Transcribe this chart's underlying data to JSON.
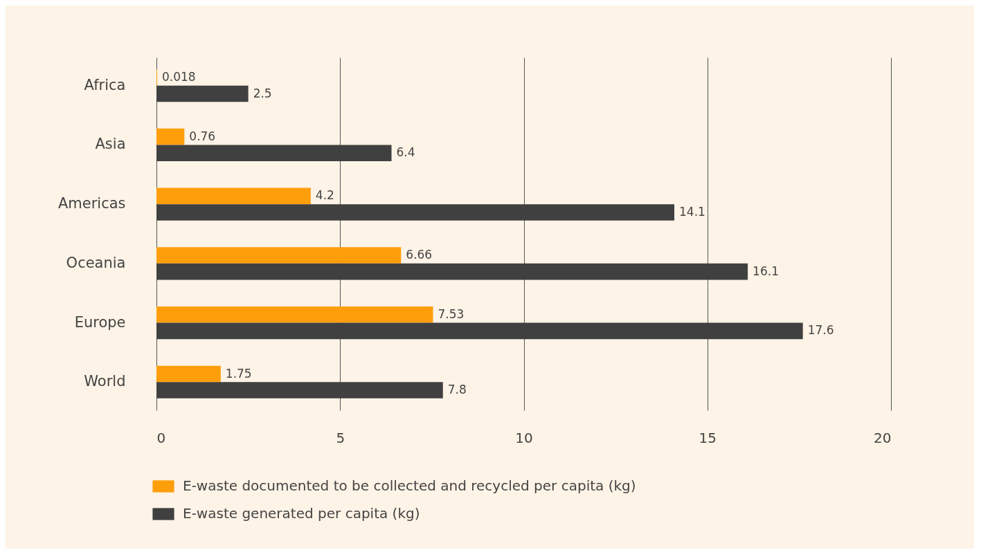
{
  "chart_data": {
    "type": "bar",
    "orientation": "horizontal",
    "categories": [
      "Africa",
      "Asia",
      "Americas",
      "Oceania",
      "Europe",
      "World"
    ],
    "series": [
      {
        "name": "E-waste documented to be collected and recycled per capita (kg)",
        "color": "#ff9e0b",
        "values": [
          0.018,
          0.76,
          4.2,
          6.66,
          7.53,
          1.75
        ]
      },
      {
        "name": "E-waste generated per capita (kg)",
        "color": "#404040",
        "values": [
          2.5,
          6.4,
          14.1,
          16.1,
          17.6,
          7.8
        ]
      }
    ],
    "xlim": [
      0,
      20
    ],
    "xticks": [
      0,
      5,
      10,
      15,
      20
    ],
    "grid": "x",
    "legend": "bottom",
    "data_labels": true
  }
}
